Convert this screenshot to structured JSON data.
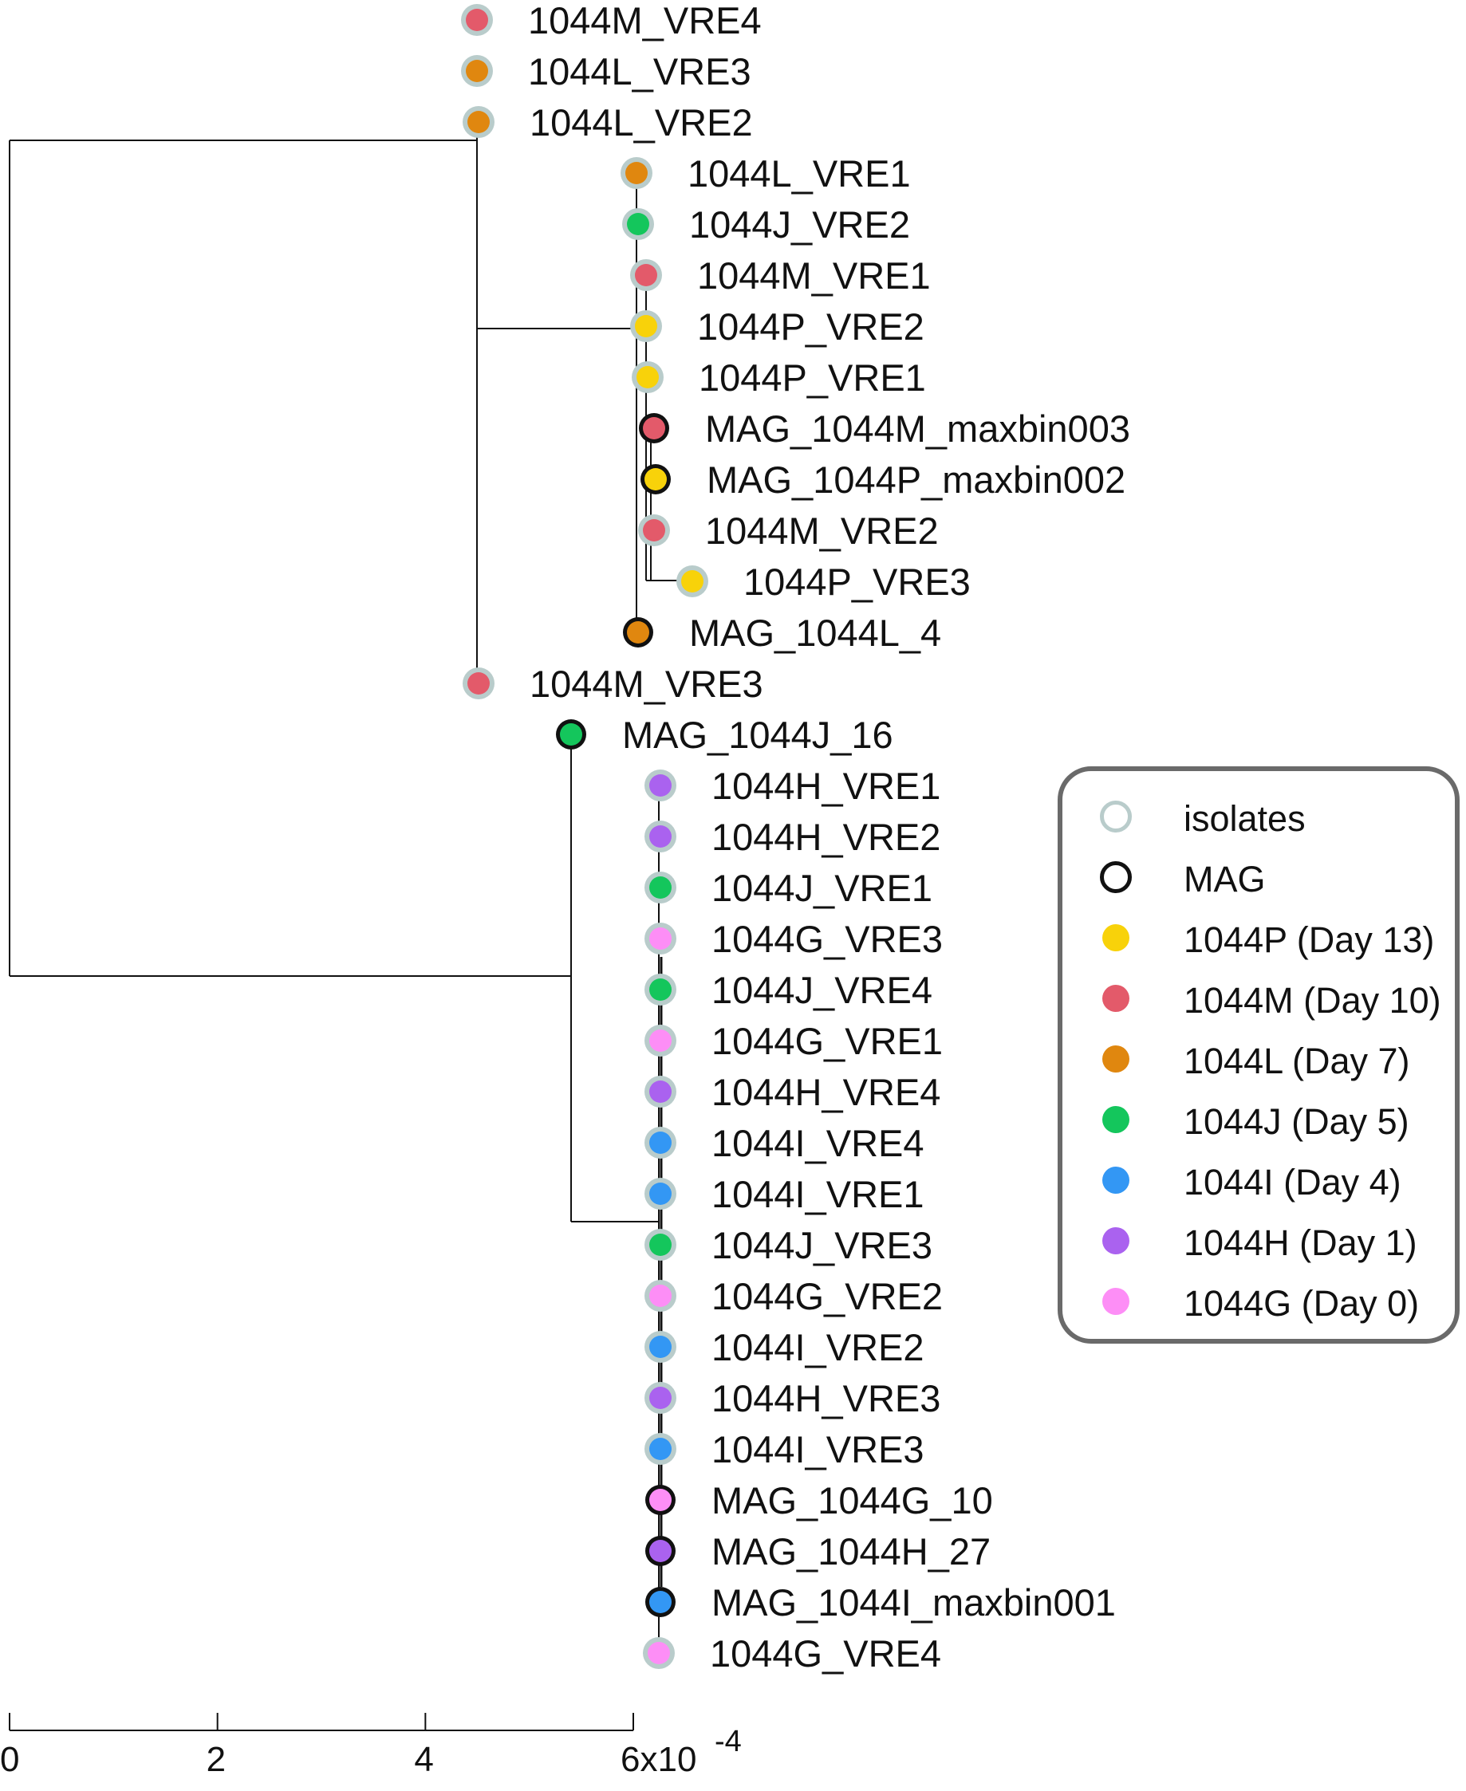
{
  "colors": {
    "isolate_ring": "#b9cccb",
    "mag_ring": "#111111",
    "1044P": "#f8d20a",
    "1044M": "#e35a6a",
    "1044L": "#e0870f",
    "1044J": "#14c65c",
    "1044I": "#3397f4",
    "1044H": "#aa62ef",
    "1044G": "#fd8ef6"
  },
  "tips": [
    {
      "label": "1044M_VRE4",
      "sample": "1044M",
      "kind": "isolate",
      "dist": 0.00045
    },
    {
      "label": "1044L_VRE3",
      "sample": "1044L",
      "kind": "isolate",
      "dist": 0.00045
    },
    {
      "label": "1044L_VRE2",
      "sample": "1044L",
      "kind": "isolate",
      "dist": 0.00045
    },
    {
      "label": "1044L_VRE1",
      "sample": "1044L",
      "kind": "isolate",
      "dist": 0.0006
    },
    {
      "label": "1044J_VRE2",
      "sample": "1044J",
      "kind": "isolate",
      "dist": 0.0006
    },
    {
      "label": "1044M_VRE1",
      "sample": "1044M",
      "kind": "isolate",
      "dist": 0.00061
    },
    {
      "label": "1044P_VRE2",
      "sample": "1044P",
      "kind": "isolate",
      "dist": 0.00061
    },
    {
      "label": "1044P_VRE1",
      "sample": "1044P",
      "kind": "isolate",
      "dist": 0.00061
    },
    {
      "label": "MAG_1044M_maxbin003",
      "sample": "1044M",
      "kind": "MAG",
      "dist": 0.000615
    },
    {
      "label": "MAG_1044P_maxbin002",
      "sample": "1044P",
      "kind": "MAG",
      "dist": 0.000615
    },
    {
      "label": "1044M_VRE2",
      "sample": "1044M",
      "kind": "isolate",
      "dist": 0.000615
    },
    {
      "label": "1044P_VRE3",
      "sample": "1044P",
      "kind": "isolate",
      "dist": 0.00065
    },
    {
      "label": "MAG_1044L_4",
      "sample": "1044L",
      "kind": "MAG",
      "dist": 0.0006
    },
    {
      "label": "1044M_VRE3",
      "sample": "1044M",
      "kind": "isolate",
      "dist": 0.00045
    },
    {
      "label": "MAG_1044J_16",
      "sample": "1044J",
      "kind": "MAG",
      "dist": 0.00054
    },
    {
      "label": "1044H_VRE1",
      "sample": "1044H",
      "kind": "isolate",
      "dist": 0.00063
    },
    {
      "label": "1044H_VRE2",
      "sample": "1044H",
      "kind": "isolate",
      "dist": 0.00063
    },
    {
      "label": "1044J_VRE1",
      "sample": "1044J",
      "kind": "isolate",
      "dist": 0.00063
    },
    {
      "label": "1044G_VRE3",
      "sample": "1044G",
      "kind": "isolate",
      "dist": 0.00063
    },
    {
      "label": "1044J_VRE4",
      "sample": "1044J",
      "kind": "isolate",
      "dist": 0.00063
    },
    {
      "label": "1044G_VRE1",
      "sample": "1044G",
      "kind": "isolate",
      "dist": 0.00063
    },
    {
      "label": "1044H_VRE4",
      "sample": "1044H",
      "kind": "isolate",
      "dist": 0.00063
    },
    {
      "label": "1044I_VRE4",
      "sample": "1044I",
      "kind": "isolate",
      "dist": 0.00063
    },
    {
      "label": "1044I_VRE1",
      "sample": "1044I",
      "kind": "isolate",
      "dist": 0.00063
    },
    {
      "label": "1044J_VRE3",
      "sample": "1044J",
      "kind": "isolate",
      "dist": 0.00063
    },
    {
      "label": "1044G_VRE2",
      "sample": "1044G",
      "kind": "isolate",
      "dist": 0.00063
    },
    {
      "label": "1044I_VRE2",
      "sample": "1044I",
      "kind": "isolate",
      "dist": 0.00063
    },
    {
      "label": "1044H_VRE3",
      "sample": "1044H",
      "kind": "isolate",
      "dist": 0.00063
    },
    {
      "label": "1044I_VRE3",
      "sample": "1044I",
      "kind": "isolate",
      "dist": 0.00063
    },
    {
      "label": "MAG_1044G_10",
      "sample": "1044G",
      "kind": "MAG",
      "dist": 0.00063
    },
    {
      "label": "MAG_1044H_27",
      "sample": "1044H",
      "kind": "MAG",
      "dist": 0.00063
    },
    {
      "label": "MAG_1044I_maxbin001",
      "sample": "1044I",
      "kind": "MAG",
      "dist": 0.00063
    },
    {
      "label": "1044G_VRE4",
      "sample": "1044G",
      "kind": "isolate",
      "dist": 0.00063
    }
  ],
  "scale_axis": {
    "ticks": [
      0,
      2,
      4,
      6
    ],
    "tick_labels": [
      "0",
      "2",
      "4",
      "6x10"
    ],
    "exponent": "-4",
    "max": 0.0006
  },
  "legend": {
    "items": [
      {
        "label": "isolates",
        "type": "ring",
        "color_key": "isolate_ring"
      },
      {
        "label": "MAG",
        "type": "ring",
        "color_key": "mag_ring"
      },
      {
        "label": "1044P (Day 13)",
        "type": "dot",
        "color_key": "1044P"
      },
      {
        "label": "1044M (Day 10)",
        "type": "dot",
        "color_key": "1044M"
      },
      {
        "label": "1044L (Day 7)",
        "type": "dot",
        "color_key": "1044L"
      },
      {
        "label": "1044J (Day 5)",
        "type": "dot",
        "color_key": "1044J"
      },
      {
        "label": "1044I (Day 4)",
        "type": "dot",
        "color_key": "1044I"
      },
      {
        "label": "1044H (Day 1)",
        "type": "dot",
        "color_key": "1044H"
      },
      {
        "label": "1044G (Day 0)",
        "type": "dot",
        "color_key": "1044G"
      }
    ]
  }
}
